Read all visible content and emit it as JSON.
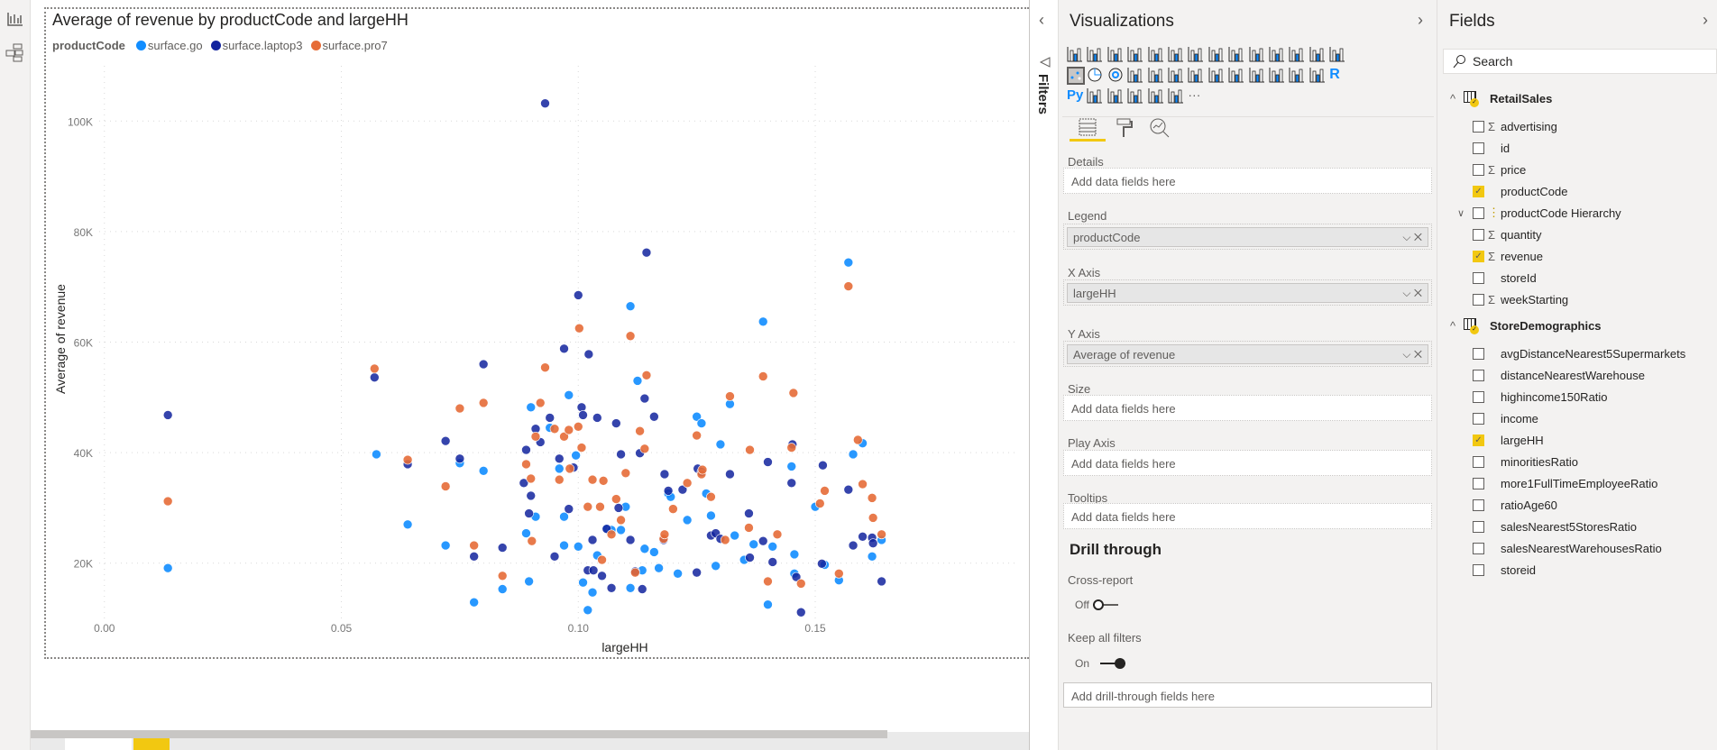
{
  "leftbar": {
    "icons": [
      "report-view-icon",
      "model-view-icon"
    ]
  },
  "chart_title": "Average of revenue by productCode and largeHH",
  "legend": {
    "title": "productCode",
    "items": [
      {
        "label": "surface.go",
        "color": "#118dff"
      },
      {
        "label": "surface.laptop3",
        "color": "#12239e"
      },
      {
        "label": "surface.pro7",
        "color": "#e66c37"
      }
    ]
  },
  "chart_data": {
    "type": "scatter",
    "title": "Average of revenue by productCode and largeHH",
    "xlabel": "largeHH",
    "ylabel": "Average of revenue",
    "xlim": [
      -0.003,
      0.193
    ],
    "ylim": [
      10,
      110
    ],
    "grid": true,
    "legend_position": "top-left",
    "xticks": [
      {
        "v": 0,
        "label": "0.00"
      },
      {
        "v": 0.05,
        "label": "0.05"
      },
      {
        "v": 0.1,
        "label": "0.10"
      },
      {
        "v": 0.15,
        "label": "0.15"
      }
    ],
    "yticks": [
      {
        "v": 20,
        "label": "20K"
      },
      {
        "v": 40,
        "label": "40K"
      },
      {
        "v": 60,
        "label": "60K"
      },
      {
        "v": 80,
        "label": "80K"
      },
      {
        "v": 100,
        "label": "100K"
      }
    ],
    "series": [
      {
        "name": "surface.go",
        "color": "#118dff",
        "points": [
          [
            0.0134,
            19.1
          ],
          [
            0.0574,
            39.7
          ],
          [
            0.064,
            27
          ],
          [
            0.072,
            23.2
          ],
          [
            0.075,
            38.1
          ],
          [
            0.08,
            36.7
          ],
          [
            0.078,
            12.9
          ],
          [
            0.084,
            15.3
          ],
          [
            0.0896,
            16.7
          ],
          [
            0.09,
            48.2
          ],
          [
            0.089,
            25.4
          ],
          [
            0.091,
            28.4
          ],
          [
            0.094,
            44.5
          ],
          [
            0.096,
            37.1
          ],
          [
            0.097,
            28.4
          ],
          [
            0.097,
            23.2
          ],
          [
            0.098,
            50.4
          ],
          [
            0.0995,
            39.5
          ],
          [
            0.1,
            23.0
          ],
          [
            0.101,
            16.5
          ],
          [
            0.102,
            11.5
          ],
          [
            0.103,
            14.7
          ],
          [
            0.104,
            21.4
          ],
          [
            0.106,
            26.2
          ],
          [
            0.107,
            26.0
          ],
          [
            0.109,
            26.0
          ],
          [
            0.11,
            30.2
          ],
          [
            0.111,
            15.5
          ],
          [
            0.111,
            66.5
          ],
          [
            0.1125,
            53.0
          ],
          [
            0.1135,
            18.7
          ],
          [
            0.114,
            22.6
          ],
          [
            0.116,
            22.0
          ],
          [
            0.117,
            19.1
          ],
          [
            0.119,
            32.6
          ],
          [
            0.1195,
            32.0
          ],
          [
            0.121,
            18.1
          ],
          [
            0.123,
            27.8
          ],
          [
            0.125,
            46.5
          ],
          [
            0.126,
            45.3
          ],
          [
            0.127,
            32.6
          ],
          [
            0.128,
            28.6
          ],
          [
            0.129,
            19.5
          ],
          [
            0.13,
            41.5
          ],
          [
            0.132,
            48.8
          ],
          [
            0.133,
            25.0
          ],
          [
            0.135,
            20.6
          ],
          [
            0.137,
            23.4
          ],
          [
            0.139,
            63.7
          ],
          [
            0.14,
            12.5
          ],
          [
            0.141,
            23.0
          ],
          [
            0.145,
            37.5
          ],
          [
            0.1456,
            21.6
          ],
          [
            0.1456,
            18.1
          ],
          [
            0.15,
            30.2
          ],
          [
            0.152,
            19.7
          ],
          [
            0.155,
            16.9
          ],
          [
            0.157,
            74.4
          ],
          [
            0.158,
            39.7
          ],
          [
            0.16,
            41.7
          ],
          [
            0.162,
            21.2
          ],
          [
            0.164,
            24.2
          ]
        ]
      },
      {
        "name": "surface.laptop3",
        "color": "#12239e",
        "points": [
          [
            0.0134,
            46.8
          ],
          [
            0.057,
            53.6
          ],
          [
            0.064,
            37.9
          ],
          [
            0.072,
            42.1
          ],
          [
            0.075,
            38.9
          ],
          [
            0.078,
            21.2
          ],
          [
            0.08,
            56.0
          ],
          [
            0.084,
            22.8
          ],
          [
            0.089,
            40.5
          ],
          [
            0.0885,
            34.5
          ],
          [
            0.0896,
            29.0
          ],
          [
            0.09,
            32.2
          ],
          [
            0.091,
            44.3
          ],
          [
            0.092,
            41.9
          ],
          [
            0.093,
            103.2
          ],
          [
            0.094,
            46.3
          ],
          [
            0.095,
            21.2
          ],
          [
            0.096,
            38.9
          ],
          [
            0.097,
            58.8
          ],
          [
            0.098,
            29.8
          ],
          [
            0.099,
            37.3
          ],
          [
            0.1,
            68.5
          ],
          [
            0.1007,
            48.2
          ],
          [
            0.101,
            46.8
          ],
          [
            0.102,
            18.7
          ],
          [
            0.1022,
            57.8
          ],
          [
            0.103,
            24.2
          ],
          [
            0.1032,
            18.7
          ],
          [
            0.104,
            46.3
          ],
          [
            0.105,
            17.7
          ],
          [
            0.106,
            26.2
          ],
          [
            0.107,
            15.5
          ],
          [
            0.108,
            45.3
          ],
          [
            0.1085,
            30.0
          ],
          [
            0.109,
            39.7
          ],
          [
            0.111,
            24.2
          ],
          [
            0.112,
            18.5
          ],
          [
            0.113,
            39.9
          ],
          [
            0.1135,
            15.3
          ],
          [
            0.114,
            49.8
          ],
          [
            0.1144,
            76.2
          ],
          [
            0.116,
            46.5
          ],
          [
            0.118,
            24.2
          ],
          [
            0.1182,
            36.1
          ],
          [
            0.119,
            33.1
          ],
          [
            0.122,
            33.3
          ],
          [
            0.125,
            18.3
          ],
          [
            0.1252,
            37.1
          ],
          [
            0.126,
            36.5
          ],
          [
            0.128,
            25.0
          ],
          [
            0.129,
            25.4
          ],
          [
            0.13,
            24.4
          ],
          [
            0.132,
            36.1
          ],
          [
            0.136,
            29.0
          ],
          [
            0.1362,
            21.0
          ],
          [
            0.139,
            24.0
          ],
          [
            0.14,
            38.3
          ],
          [
            0.141,
            20.2
          ],
          [
            0.145,
            34.5
          ],
          [
            0.1452,
            41.5
          ],
          [
            0.146,
            17.5
          ],
          [
            0.147,
            11.1
          ],
          [
            0.1514,
            19.9
          ],
          [
            0.1516,
            37.7
          ],
          [
            0.157,
            33.3
          ],
          [
            0.158,
            23.2
          ],
          [
            0.16,
            24.8
          ],
          [
            0.162,
            24.6
          ],
          [
            0.1622,
            23.6
          ],
          [
            0.164,
            16.7
          ]
        ]
      },
      {
        "name": "surface.pro7",
        "color": "#e66c37",
        "points": [
          [
            0.0134,
            31.2
          ],
          [
            0.057,
            55.2
          ],
          [
            0.064,
            38.7
          ],
          [
            0.072,
            33.9
          ],
          [
            0.075,
            48.0
          ],
          [
            0.078,
            23.2
          ],
          [
            0.08,
            49.0
          ],
          [
            0.084,
            17.7
          ],
          [
            0.089,
            37.9
          ],
          [
            0.09,
            35.3
          ],
          [
            0.0902,
            24.0
          ],
          [
            0.091,
            42.9
          ],
          [
            0.092,
            49.0
          ],
          [
            0.093,
            55.4
          ],
          [
            0.095,
            44.3
          ],
          [
            0.096,
            35.1
          ],
          [
            0.097,
            42.9
          ],
          [
            0.098,
            44.1
          ],
          [
            0.0982,
            37.1
          ],
          [
            0.1,
            44.7
          ],
          [
            0.1002,
            62.5
          ],
          [
            0.1007,
            40.9
          ],
          [
            0.102,
            30.2
          ],
          [
            0.103,
            35.1
          ],
          [
            0.1046,
            30.2
          ],
          [
            0.105,
            20.6
          ],
          [
            0.1053,
            34.9
          ],
          [
            0.107,
            25.2
          ],
          [
            0.108,
            31.6
          ],
          [
            0.109,
            27.8
          ],
          [
            0.11,
            36.3
          ],
          [
            0.111,
            61.1
          ],
          [
            0.112,
            18.3
          ],
          [
            0.113,
            43.9
          ],
          [
            0.114,
            40.7
          ],
          [
            0.1144,
            54.0
          ],
          [
            0.118,
            24.4
          ],
          [
            0.1182,
            25.2
          ],
          [
            0.12,
            29.8
          ],
          [
            0.123,
            34.5
          ],
          [
            0.125,
            43.1
          ],
          [
            0.126,
            36.1
          ],
          [
            0.1262,
            36.9
          ],
          [
            0.128,
            32.0
          ],
          [
            0.131,
            24.2
          ],
          [
            0.132,
            50.2
          ],
          [
            0.136,
            26.4
          ],
          [
            0.1362,
            40.5
          ],
          [
            0.139,
            53.8
          ],
          [
            0.14,
            16.7
          ],
          [
            0.142,
            25.2
          ],
          [
            0.145,
            40.9
          ],
          [
            0.1454,
            50.8
          ],
          [
            0.147,
            16.3
          ],
          [
            0.151,
            30.8
          ],
          [
            0.152,
            33.1
          ],
          [
            0.155,
            18.1
          ],
          [
            0.157,
            70.1
          ],
          [
            0.159,
            42.3
          ],
          [
            0.16,
            34.3
          ],
          [
            0.162,
            31.8
          ],
          [
            0.1622,
            28.2
          ],
          [
            0.164,
            25.2
          ]
        ]
      }
    ]
  },
  "filters": {
    "label": "Filters"
  },
  "viz": {
    "title": "Visualizations",
    "icons": [
      "stacked-bar-chart",
      "stacked-column-chart",
      "clustered-bar-chart",
      "clustered-column-chart",
      "100-stacked-bar-chart",
      "100-stacked-column-chart",
      "line-chart",
      "area-chart",
      "stacked-area-chart",
      "line-and-stacked-column-chart",
      "line-and-clustered-column-chart",
      "ribbon-chart",
      "waterfall-chart",
      "funnel-chart",
      "scatter-chart",
      "pie-chart",
      "donut-chart",
      "treemap",
      "map",
      "filled-map",
      "gauge",
      "card",
      "multi-row-card",
      "kpi",
      "slicer",
      "table",
      "matrix",
      "r-visual",
      "python-visual",
      "key-influencers",
      "decomposition-tree",
      "qa",
      "smart-narrative",
      "paginated-report",
      "more"
    ],
    "r_label": "R",
    "py_label": "Py",
    "more_label": "···",
    "tabs": [
      "fields-tab",
      "format-tab",
      "analytics-tab"
    ],
    "wells": [
      {
        "label": "Details",
        "placeholder": "Add data fields here"
      },
      {
        "label": "Legend",
        "value": "productCode"
      },
      {
        "label": "X Axis",
        "value": "largeHH"
      },
      {
        "label": "Y Axis",
        "value": "Average of revenue"
      },
      {
        "label": "Size",
        "placeholder": "Add data fields here"
      },
      {
        "label": "Play Axis",
        "placeholder": "Add data fields here"
      },
      {
        "label": "Tooltips",
        "placeholder": "Add data fields here"
      }
    ],
    "drill": {
      "title": "Drill through",
      "cross_report": "Cross-report",
      "cross_state": "Off",
      "keep_filters": "Keep all filters",
      "keep_state": "On",
      "placeholder": "Add drill-through fields here"
    }
  },
  "fields": {
    "title": "Fields",
    "search_placeholder": "Search",
    "tables": [
      {
        "name": "RetailSales",
        "items": [
          {
            "name": "advertising",
            "sigma": true,
            "checked": false
          },
          {
            "name": "id",
            "sigma": false,
            "checked": false
          },
          {
            "name": "price",
            "sigma": true,
            "checked": false
          },
          {
            "name": "productCode",
            "sigma": false,
            "checked": true
          },
          {
            "name": "productCode Hierarchy",
            "hierarchy": true,
            "checked": false
          },
          {
            "name": "quantity",
            "sigma": true,
            "checked": false
          },
          {
            "name": "revenue",
            "sigma": true,
            "checked": true
          },
          {
            "name": "storeId",
            "sigma": false,
            "checked": false
          },
          {
            "name": "weekStarting",
            "sigma": true,
            "checked": false
          }
        ]
      },
      {
        "name": "StoreDemographics",
        "items": [
          {
            "name": "avgDistanceNearest5Supermarkets",
            "checked": false
          },
          {
            "name": "distanceNearestWarehouse",
            "checked": false
          },
          {
            "name": "highincome150Ratio",
            "checked": false
          },
          {
            "name": "income",
            "checked": false
          },
          {
            "name": "largeHH",
            "checked": true
          },
          {
            "name": "minoritiesRatio",
            "checked": false
          },
          {
            "name": "more1FullTimeEmployeeRatio",
            "checked": false
          },
          {
            "name": "ratioAge60",
            "checked": false
          },
          {
            "name": "salesNearest5StoresRatio",
            "checked": false
          },
          {
            "name": "salesNearestWarehousesRatio",
            "checked": false
          },
          {
            "name": "storeid",
            "checked": false
          }
        ]
      }
    ]
  }
}
